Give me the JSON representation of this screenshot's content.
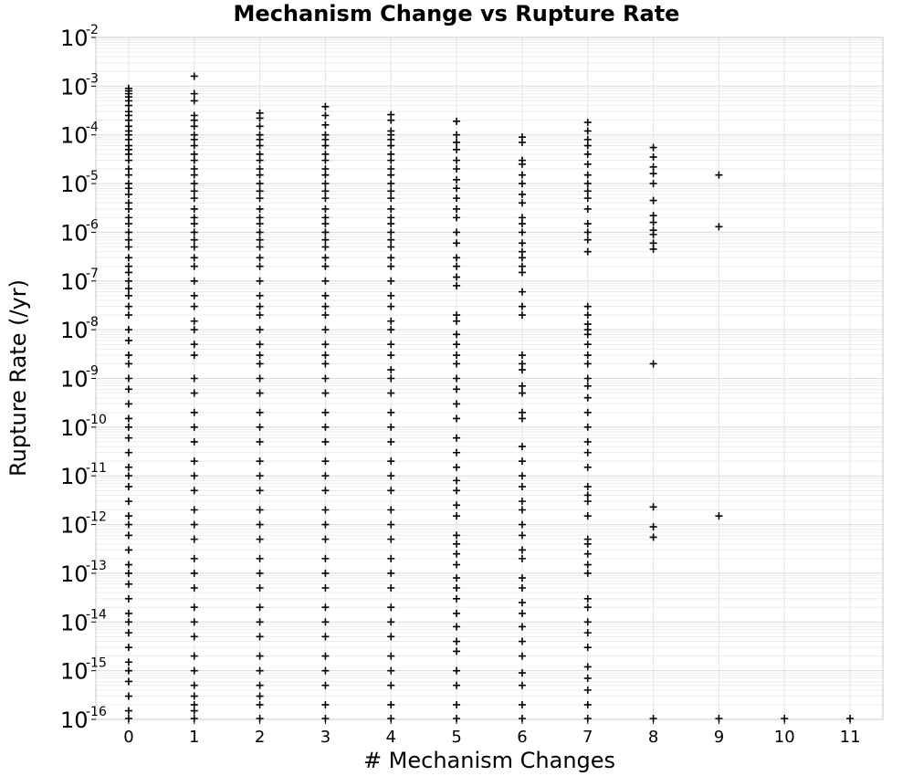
{
  "chart_data": {
    "type": "scatter",
    "title": "Mechanism Change vs Rupture Rate",
    "xlabel": "# Mechanism Changes",
    "ylabel": "Rupture Rate (/yr)",
    "xlim": [
      -0.5,
      11.5
    ],
    "ylim": [
      1e-16,
      0.01
    ],
    "y_scale": "log",
    "grid": true,
    "legend": "none",
    "marker": "plus",
    "marker_color": "#000000",
    "x_ticks": [
      0,
      1,
      2,
      3,
      4,
      5,
      6,
      7,
      8,
      9,
      10,
      11
    ],
    "y_ticks": [
      {
        "base": "10",
        "exp": "-2",
        "value": 0.01
      },
      {
        "base": "10",
        "exp": "-3",
        "value": 0.001
      },
      {
        "base": "10",
        "exp": "-4",
        "value": 0.0001
      },
      {
        "base": "10",
        "exp": "-5",
        "value": 1e-05
      },
      {
        "base": "10",
        "exp": "-6",
        "value": 1e-06
      },
      {
        "base": "10",
        "exp": "-7",
        "value": 1e-07
      },
      {
        "base": "10",
        "exp": "-8",
        "value": 1e-08
      },
      {
        "base": "10",
        "exp": "-9",
        "value": 1e-09
      },
      {
        "base": "10",
        "exp": "-10",
        "value": 1e-10
      },
      {
        "base": "10",
        "exp": "-11",
        "value": 1e-11
      },
      {
        "base": "10",
        "exp": "-12",
        "value": 1e-12
      },
      {
        "base": "10",
        "exp": "-13",
        "value": 1e-13
      },
      {
        "base": "10",
        "exp": "-14",
        "value": 1e-14
      },
      {
        "base": "10",
        "exp": "-15",
        "value": 1e-15
      },
      {
        "base": "10",
        "exp": "-16",
        "value": 1e-16
      }
    ],
    "points": [
      {
        "x": 0,
        "y": [
          0.0009,
          0.0008,
          0.0007,
          0.0006,
          0.0005,
          0.0004,
          0.0003,
          0.00025,
          0.0002,
          0.00015,
          0.00012,
          0.0001,
          8e-05,
          6e-05,
          5e-05,
          4e-05,
          3e-05,
          2e-05,
          1.5e-05,
          1e-05,
          8e-06,
          6e-06,
          4e-06,
          3e-06,
          2e-06,
          1.5e-06,
          1e-06,
          7e-07,
          5e-07,
          3e-07,
          2e-07,
          1.5e-07,
          1e-07,
          7e-08,
          5e-08,
          3e-08,
          2e-08,
          1e-08,
          6e-09,
          3e-09,
          2e-09,
          1e-09,
          6e-10,
          3e-10,
          1.5e-10,
          1e-10,
          6e-11,
          3e-11,
          1.5e-11,
          1e-11,
          6e-12,
          3e-12,
          1.5e-12,
          1e-12,
          6e-13,
          3e-13,
          1.5e-13,
          1e-13,
          6e-14,
          3e-14,
          1.5e-14,
          1e-14,
          6e-15,
          3e-15,
          1.5e-15,
          1e-15,
          6e-16,
          3e-16,
          1.5e-16,
          1e-16
        ]
      },
      {
        "x": 1,
        "y": [
          0.0016,
          0.0007,
          0.0005,
          0.00025,
          0.0002,
          0.00015,
          0.0001,
          8e-05,
          6e-05,
          4e-05,
          3e-05,
          2e-05,
          1.5e-05,
          1e-05,
          7e-06,
          5e-06,
          3e-06,
          2e-06,
          1.5e-06,
          1e-06,
          7e-07,
          5e-07,
          3e-07,
          2e-07,
          1e-07,
          5e-08,
          3e-08,
          1.5e-08,
          1e-08,
          5e-09,
          3e-09,
          1e-09,
          5e-10,
          2e-10,
          1e-10,
          5e-11,
          2e-11,
          1e-11,
          5e-12,
          2e-12,
          1e-12,
          5e-13,
          2e-13,
          1e-13,
          5e-14,
          2e-14,
          1e-14,
          5e-15,
          2e-15,
          1e-15,
          5e-16,
          3e-16,
          2e-16,
          1.5e-16,
          1e-16
        ]
      },
      {
        "x": 2,
        "y": [
          0.00028,
          0.00022,
          0.00015,
          0.0001,
          8e-05,
          6e-05,
          4e-05,
          3e-05,
          2e-05,
          1.5e-05,
          1e-05,
          7e-06,
          5e-06,
          3e-06,
          2e-06,
          1.5e-06,
          1e-06,
          7e-07,
          5e-07,
          3e-07,
          2e-07,
          1e-07,
          5e-08,
          3e-08,
          2e-08,
          1e-08,
          5e-09,
          3e-09,
          2e-09,
          1e-09,
          5e-10,
          2e-10,
          1e-10,
          5e-11,
          2e-11,
          1e-11,
          5e-12,
          2e-12,
          1e-12,
          5e-13,
          2e-13,
          1e-13,
          5e-14,
          2e-14,
          1e-14,
          5e-15,
          2e-15,
          1e-15,
          5e-16,
          3e-16,
          2e-16,
          1e-16
        ]
      },
      {
        "x": 3,
        "y": [
          0.00038,
          0.00025,
          0.00016,
          0.0001,
          8e-05,
          6e-05,
          4e-05,
          3e-05,
          2e-05,
          1.5e-05,
          1e-05,
          7e-06,
          5e-06,
          3e-06,
          2e-06,
          1.5e-06,
          1e-06,
          7e-07,
          5e-07,
          3e-07,
          2e-07,
          1e-07,
          5e-08,
          3e-08,
          2e-08,
          1e-08,
          5e-09,
          3e-09,
          2e-09,
          1e-09,
          5e-10,
          2e-10,
          1e-10,
          5e-11,
          2e-11,
          1e-11,
          5e-12,
          2e-12,
          1e-12,
          5e-13,
          2e-13,
          1e-13,
          5e-14,
          2e-14,
          1e-14,
          5e-15,
          2e-15,
          1e-15,
          5e-16,
          2e-16,
          1e-16
        ]
      },
      {
        "x": 4,
        "y": [
          0.00026,
          0.0002,
          0.00012,
          0.0001,
          8e-05,
          6e-05,
          4e-05,
          3e-05,
          2e-05,
          1.5e-05,
          1e-05,
          7e-06,
          5e-06,
          3e-06,
          2e-06,
          1.5e-06,
          1e-06,
          7e-07,
          5e-07,
          3e-07,
          2e-07,
          1e-07,
          5e-08,
          3e-08,
          1.5e-08,
          1e-08,
          5e-09,
          3e-09,
          1.5e-09,
          1e-09,
          5e-10,
          2e-10,
          1e-10,
          5e-11,
          2e-11,
          1e-11,
          5e-12,
          2e-12,
          1e-12,
          5e-13,
          2e-13,
          1e-13,
          5e-14,
          2e-14,
          1e-14,
          5e-15,
          2e-15,
          1e-15,
          5e-16,
          2e-16,
          1e-16
        ]
      },
      {
        "x": 5,
        "y": [
          0.00019,
          0.0001,
          7e-05,
          5e-05,
          3e-05,
          2e-05,
          1.2e-05,
          8e-06,
          5e-06,
          3e-06,
          2e-06,
          1e-06,
          6e-07,
          3e-07,
          2e-07,
          1.2e-07,
          8e-08,
          2e-08,
          1.5e-08,
          8e-09,
          5e-09,
          3e-09,
          2e-09,
          1e-09,
          6e-10,
          3e-10,
          1.5e-10,
          6e-11,
          3e-11,
          1.5e-11,
          8e-12,
          5e-12,
          2.5e-12,
          1.5e-12,
          6e-13,
          4e-13,
          2.5e-13,
          1.5e-13,
          8e-14,
          5e-14,
          3e-14,
          1.5e-14,
          8e-15,
          4e-15,
          2.5e-15,
          1e-15,
          5e-16,
          2e-16,
          1e-16
        ]
      },
      {
        "x": 6,
        "y": [
          9e-05,
          7e-05,
          3e-05,
          2.5e-05,
          1.5e-05,
          1e-05,
          6e-06,
          4e-06,
          2e-06,
          1.5e-06,
          1e-06,
          6e-07,
          4e-07,
          3e-07,
          2e-07,
          1.5e-07,
          6e-08,
          3e-08,
          2e-08,
          3e-09,
          2e-09,
          1.5e-09,
          7e-10,
          5e-10,
          2e-10,
          1.5e-10,
          4e-11,
          2e-11,
          1e-11,
          6e-12,
          3e-12,
          2e-12,
          1e-12,
          6e-13,
          3e-13,
          2e-13,
          8e-14,
          5e-14,
          2.5e-14,
          1.5e-14,
          8e-15,
          4e-15,
          2e-15,
          9e-16,
          5e-16,
          2e-16,
          1e-16
        ]
      },
      {
        "x": 7,
        "y": [
          0.00018,
          0.00012,
          8e-05,
          6e-05,
          4e-05,
          2.5e-05,
          1.5e-05,
          1e-05,
          7e-06,
          5e-06,
          3e-06,
          1.5e-06,
          1e-06,
          7e-07,
          4e-07,
          3e-08,
          2e-08,
          1.3e-08,
          1e-08,
          8e-09,
          5e-09,
          3e-09,
          2e-09,
          1e-09,
          7e-10,
          4e-10,
          2e-10,
          1e-10,
          5e-11,
          3e-11,
          1.5e-11,
          6e-12,
          4e-12,
          3e-12,
          1.5e-12,
          5e-13,
          4e-13,
          2.5e-13,
          1.5e-13,
          1e-13,
          3e-14,
          2e-14,
          1e-14,
          6e-15,
          3e-15,
          1.2e-15,
          7e-16,
          4e-16,
          2e-16,
          1e-16
        ]
      },
      {
        "x": 8,
        "y": [
          5.5e-05,
          3.5e-05,
          2.2e-05,
          1.6e-05,
          1e-05,
          4.5e-06,
          2.2e-06,
          1.6e-06,
          1.1e-06,
          9e-07,
          6e-07,
          4.5e-07,
          2e-09,
          2.3e-12,
          9e-13,
          5.5e-13,
          1e-16
        ]
      },
      {
        "x": 9,
        "y": [
          1.5e-05,
          1.3e-06,
          1.5e-12,
          1e-16
        ]
      },
      {
        "x": 10,
        "y": [
          1e-16
        ]
      },
      {
        "x": 11,
        "y": [
          1e-16
        ]
      }
    ]
  }
}
